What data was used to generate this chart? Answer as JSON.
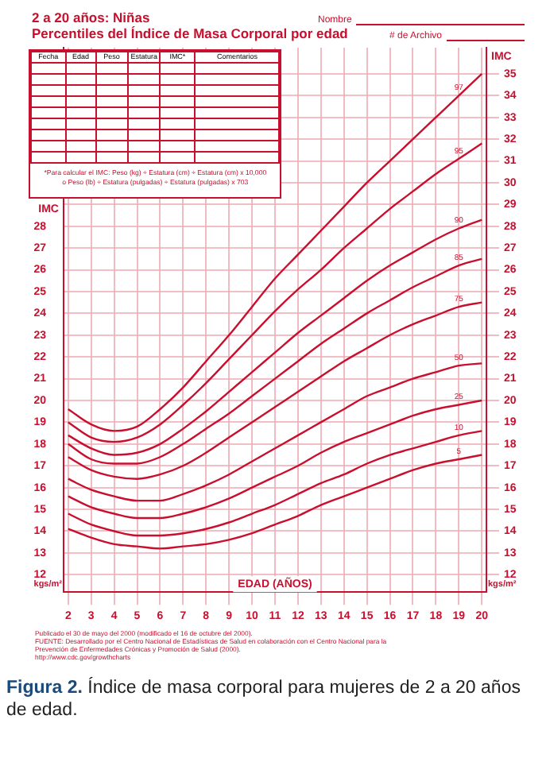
{
  "chart_data": {
    "type": "line",
    "title": "2 a 20 años: Niñas",
    "subtitle": "Percentiles del Índice de Masa Corporal por edad",
    "xlabel": "EDAD (AÑOS)",
    "ylabel": "IMC",
    "y2label": "IMC",
    "x": [
      2,
      3,
      4,
      5,
      6,
      7,
      8,
      9,
      10,
      11,
      12,
      13,
      14,
      15,
      16,
      17,
      18,
      19,
      20
    ],
    "series": [
      {
        "name": "97",
        "color": "#c8102e",
        "values": [
          19.6,
          18.9,
          18.6,
          18.8,
          19.6,
          20.6,
          21.8,
          23.0,
          24.3,
          25.6,
          26.7,
          27.8,
          28.9,
          30.0,
          31.0,
          32.0,
          33.0,
          34.0,
          35.0
        ]
      },
      {
        "name": "95",
        "color": "#c8102e",
        "values": [
          19.0,
          18.3,
          18.1,
          18.3,
          18.9,
          19.8,
          20.8,
          21.9,
          23.0,
          24.1,
          25.1,
          26.0,
          27.0,
          27.9,
          28.8,
          29.6,
          30.4,
          31.1,
          31.8
        ]
      },
      {
        "name": "90",
        "color": "#c8102e",
        "values": [
          18.4,
          17.8,
          17.5,
          17.6,
          18.0,
          18.7,
          19.5,
          20.4,
          21.3,
          22.2,
          23.1,
          23.9,
          24.7,
          25.5,
          26.2,
          26.8,
          27.4,
          27.9,
          28.3
        ]
      },
      {
        "name": "85",
        "color": "#c8102e",
        "values": [
          18.0,
          17.3,
          17.1,
          17.1,
          17.4,
          18.0,
          18.7,
          19.4,
          20.2,
          21.0,
          21.8,
          22.6,
          23.3,
          24.0,
          24.6,
          25.2,
          25.7,
          26.2,
          26.5
        ]
      },
      {
        "name": "75",
        "color": "#c8102e",
        "values": [
          17.4,
          16.8,
          16.5,
          16.4,
          16.6,
          17.0,
          17.6,
          18.3,
          19.0,
          19.7,
          20.4,
          21.1,
          21.8,
          22.4,
          23.0,
          23.5,
          23.9,
          24.3,
          24.5
        ]
      },
      {
        "name": "50",
        "color": "#c8102e",
        "values": [
          16.4,
          15.9,
          15.6,
          15.4,
          15.4,
          15.7,
          16.1,
          16.6,
          17.2,
          17.8,
          18.4,
          19.0,
          19.6,
          20.2,
          20.6,
          21.0,
          21.3,
          21.6,
          21.7
        ]
      },
      {
        "name": "25",
        "color": "#c8102e",
        "values": [
          15.6,
          15.1,
          14.8,
          14.6,
          14.6,
          14.8,
          15.1,
          15.5,
          16.0,
          16.5,
          17.0,
          17.6,
          18.1,
          18.5,
          18.9,
          19.3,
          19.6,
          19.8,
          20.0
        ]
      },
      {
        "name": "10",
        "color": "#c8102e",
        "values": [
          14.8,
          14.3,
          14.0,
          13.8,
          13.8,
          13.9,
          14.1,
          14.4,
          14.8,
          15.2,
          15.7,
          16.2,
          16.6,
          17.1,
          17.5,
          17.8,
          18.1,
          18.4,
          18.6
        ]
      },
      {
        "name": "5",
        "color": "#c8102e",
        "values": [
          14.1,
          13.7,
          13.4,
          13.3,
          13.2,
          13.3,
          13.4,
          13.6,
          13.9,
          14.3,
          14.7,
          15.2,
          15.6,
          16.0,
          16.4,
          16.8,
          17.1,
          17.3,
          17.5
        ]
      }
    ],
    "xlim": [
      1.8,
      20.2
    ],
    "xticks": [
      2,
      3,
      4,
      5,
      6,
      7,
      8,
      9,
      10,
      11,
      12,
      13,
      14,
      15,
      16,
      17,
      18,
      19,
      20
    ],
    "ylim": [
      11.2,
      36.2
    ],
    "yticks": [
      12,
      13,
      14,
      15,
      16,
      17,
      18,
      19,
      20,
      21,
      22,
      23,
      24,
      25,
      26,
      27,
      28
    ],
    "y2lim": [
      11.2,
      36.2
    ],
    "y2ticks": [
      12,
      13,
      14,
      15,
      16,
      17,
      18,
      19,
      20,
      21,
      22,
      23,
      24,
      25,
      26,
      27,
      28,
      29,
      30,
      31,
      32,
      33,
      34,
      35
    ],
    "grid": true,
    "legend": false,
    "annotations": [
      "Nombre",
      "# de Archivo",
      "Fecha",
      "Edad",
      "Peso",
      "Estatura",
      "IMC*",
      "Comentarios",
      "*Para calcular el IMC: Peso (kg) ÷ Estatura (cm) ÷ Estatura (cm) x 10,000",
      "o Peso (lb) ÷ Estatura (pulgadas) ÷ Estatura (pulgadas) x 703",
      "kgs/m²",
      "kgs/m²",
      "Publicado el 30 de mayo del 2000 (modificado el 16 de octubre del 2000).",
      "FUENTE: Desarrollado por el Centro Nacional de Estadísticas de Salud en colaboración con el Centro Nacional para la Prevención de Enfermedades Crónicas y Promoción de Salud (2000).",
      "http://www.cdc.gov/growthcharts",
      "Figura 2. Índice de masa corporal para mujeres de 2 a 20 años de edad."
    ]
  }
}
